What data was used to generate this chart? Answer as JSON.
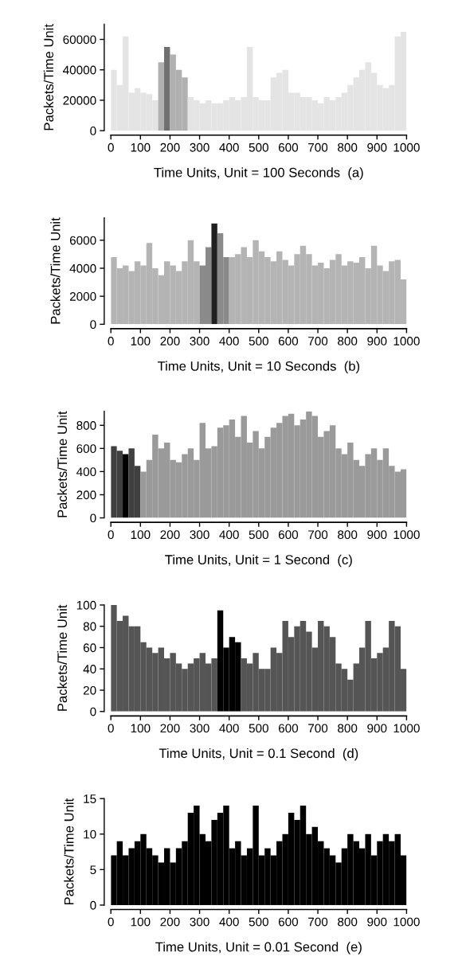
{
  "chart_data": [
    {
      "type": "bar",
      "xlabel": "Time Units, Unit = 100 Seconds  (a)",
      "ylabel": "Packets/Time Unit",
      "x": [
        10,
        30,
        50,
        70,
        90,
        110,
        130,
        150,
        170,
        190,
        210,
        230,
        250,
        270,
        290,
        310,
        330,
        350,
        370,
        390,
        410,
        430,
        450,
        470,
        490,
        510,
        530,
        550,
        570,
        590,
        610,
        630,
        650,
        670,
        690,
        710,
        730,
        750,
        770,
        790,
        810,
        830,
        850,
        870,
        890,
        910,
        930,
        950,
        970,
        990
      ],
      "values": [
        40000,
        30000,
        62000,
        25000,
        28000,
        25000,
        24000,
        20000,
        45000,
        55000,
        50000,
        40000,
        35000,
        22000,
        20000,
        18000,
        20000,
        18000,
        18000,
        20000,
        22000,
        20000,
        22000,
        55000,
        22000,
        20000,
        20000,
        35000,
        38000,
        40000,
        25000,
        25000,
        22000,
        22000,
        20000,
        18000,
        22000,
        20000,
        22000,
        25000,
        30000,
        35000,
        40000,
        45000,
        38000,
        30000,
        28000,
        30000,
        62000,
        65000
      ],
      "colors": [
        "#e4e4e4",
        "#e4e4e4",
        "#e4e4e4",
        "#e4e4e4",
        "#e4e4e4",
        "#e4e4e4",
        "#e4e4e4",
        "#e4e4e4",
        "#b0b0b0",
        "#707070",
        "#b0b0b0",
        "#b0b0b0",
        "#b0b0b0",
        "#e4e4e4",
        "#e4e4e4",
        "#e4e4e4",
        "#e4e4e4",
        "#e4e4e4",
        "#e4e4e4",
        "#e4e4e4",
        "#e4e4e4",
        "#e4e4e4",
        "#e4e4e4",
        "#e4e4e4",
        "#e4e4e4",
        "#e4e4e4",
        "#e4e4e4",
        "#e4e4e4",
        "#e4e4e4",
        "#e4e4e4",
        "#e4e4e4",
        "#e4e4e4",
        "#e4e4e4",
        "#e4e4e4",
        "#e4e4e4",
        "#e4e4e4",
        "#e4e4e4",
        "#e4e4e4",
        "#e4e4e4",
        "#e4e4e4",
        "#e4e4e4",
        "#e4e4e4",
        "#e4e4e4",
        "#e4e4e4",
        "#e4e4e4",
        "#e4e4e4",
        "#e4e4e4",
        "#e4e4e4",
        "#e4e4e4",
        "#e4e4e4"
      ],
      "xlim": [
        0,
        1000
      ],
      "xticks": [
        0,
        100,
        200,
        300,
        400,
        500,
        600,
        700,
        800,
        900,
        1000
      ],
      "ylim": [
        0,
        70000
      ],
      "yticks": [
        0,
        20000,
        40000,
        60000
      ]
    },
    {
      "type": "bar",
      "xlabel": "Time Units, Unit = 10 Seconds  (b)",
      "ylabel": "Packets/Time Unit",
      "x": [
        10,
        30,
        50,
        70,
        90,
        110,
        130,
        150,
        170,
        190,
        210,
        230,
        250,
        270,
        290,
        310,
        330,
        350,
        370,
        390,
        410,
        430,
        450,
        470,
        490,
        510,
        530,
        550,
        570,
        590,
        610,
        630,
        650,
        670,
        690,
        710,
        730,
        750,
        770,
        790,
        810,
        830,
        850,
        870,
        890,
        910,
        930,
        950,
        970,
        990
      ],
      "values": [
        4800,
        4000,
        4200,
        3800,
        4500,
        4200,
        5800,
        4000,
        3500,
        4500,
        4200,
        3800,
        4500,
        6000,
        4500,
        4200,
        5500,
        7200,
        6500,
        4800,
        4800,
        5000,
        5500,
        4800,
        6000,
        5200,
        4800,
        4500,
        5200,
        4600,
        4200,
        5000,
        5600,
        5000,
        4200,
        4400,
        4000,
        4600,
        5000,
        4200,
        4500,
        4400,
        4800,
        4000,
        5600,
        4200,
        3800,
        4500,
        4600,
        3200
      ],
      "colors": [
        "#b4b4b4",
        "#b4b4b4",
        "#b4b4b4",
        "#b4b4b4",
        "#b4b4b4",
        "#b4b4b4",
        "#b4b4b4",
        "#b4b4b4",
        "#b4b4b4",
        "#b4b4b4",
        "#b4b4b4",
        "#b4b4b4",
        "#b4b4b4",
        "#b4b4b4",
        "#b4b4b4",
        "#8a8a8a",
        "#8a8a8a",
        "#202020",
        "#8a8a8a",
        "#8a8a8a",
        "#b4b4b4",
        "#b4b4b4",
        "#b4b4b4",
        "#b4b4b4",
        "#b4b4b4",
        "#b4b4b4",
        "#b4b4b4",
        "#b4b4b4",
        "#b4b4b4",
        "#b4b4b4",
        "#b4b4b4",
        "#b4b4b4",
        "#b4b4b4",
        "#b4b4b4",
        "#b4b4b4",
        "#b4b4b4",
        "#b4b4b4",
        "#b4b4b4",
        "#b4b4b4",
        "#b4b4b4",
        "#b4b4b4",
        "#b4b4b4",
        "#b4b4b4",
        "#b4b4b4",
        "#b4b4b4",
        "#b4b4b4",
        "#b4b4b4",
        "#b4b4b4",
        "#b4b4b4",
        "#b4b4b4"
      ],
      "xlim": [
        0,
        1000
      ],
      "xticks": [
        0,
        100,
        200,
        300,
        400,
        500,
        600,
        700,
        800,
        900,
        1000
      ],
      "ylim": [
        0,
        7600
      ],
      "yticks": [
        0,
        2000,
        4000,
        6000
      ]
    },
    {
      "type": "bar",
      "xlabel": "Time Units, Unit = 1 Second  (c)",
      "ylabel": "Packets/Time Unit",
      "x": [
        10,
        30,
        50,
        70,
        90,
        110,
        130,
        150,
        170,
        190,
        210,
        230,
        250,
        270,
        290,
        310,
        330,
        350,
        370,
        390,
        410,
        430,
        450,
        470,
        490,
        510,
        530,
        550,
        570,
        590,
        610,
        630,
        650,
        670,
        690,
        710,
        730,
        750,
        770,
        790,
        810,
        830,
        850,
        870,
        890,
        910,
        930,
        950,
        970,
        990
      ],
      "values": [
        620,
        580,
        550,
        600,
        450,
        400,
        500,
        720,
        600,
        650,
        500,
        480,
        550,
        600,
        500,
        820,
        600,
        620,
        780,
        800,
        850,
        700,
        880,
        650,
        750,
        600,
        700,
        780,
        820,
        880,
        900,
        800,
        850,
        920,
        880,
        700,
        750,
        800,
        600,
        550,
        650,
        500,
        450,
        550,
        600,
        500,
        600,
        450,
        400,
        420
      ],
      "colors": [
        "#404040",
        "#404040",
        "#000000",
        "#404040",
        "#404040",
        "#9a9a9a",
        "#9a9a9a",
        "#9a9a9a",
        "#9a9a9a",
        "#9a9a9a",
        "#9a9a9a",
        "#9a9a9a",
        "#9a9a9a",
        "#9a9a9a",
        "#9a9a9a",
        "#9a9a9a",
        "#9a9a9a",
        "#9a9a9a",
        "#9a9a9a",
        "#9a9a9a",
        "#9a9a9a",
        "#9a9a9a",
        "#9a9a9a",
        "#9a9a9a",
        "#9a9a9a",
        "#9a9a9a",
        "#9a9a9a",
        "#9a9a9a",
        "#9a9a9a",
        "#9a9a9a",
        "#9a9a9a",
        "#9a9a9a",
        "#9a9a9a",
        "#9a9a9a",
        "#9a9a9a",
        "#9a9a9a",
        "#9a9a9a",
        "#9a9a9a",
        "#9a9a9a",
        "#9a9a9a",
        "#9a9a9a",
        "#9a9a9a",
        "#9a9a9a",
        "#9a9a9a",
        "#9a9a9a",
        "#9a9a9a",
        "#9a9a9a",
        "#9a9a9a",
        "#9a9a9a",
        "#9a9a9a"
      ],
      "xlim": [
        0,
        1000
      ],
      "xticks": [
        0,
        100,
        200,
        300,
        400,
        500,
        600,
        700,
        800,
        900,
        1000
      ],
      "ylim": [
        0,
        920
      ],
      "yticks": [
        0,
        200,
        400,
        600,
        800
      ]
    },
    {
      "type": "bar",
      "xlabel": "Time Units, Unit = 0.1 Second  (d)",
      "ylabel": "Packets/Time Unit",
      "x": [
        10,
        30,
        50,
        70,
        90,
        110,
        130,
        150,
        170,
        190,
        210,
        230,
        250,
        270,
        290,
        310,
        330,
        350,
        370,
        390,
        410,
        430,
        450,
        470,
        490,
        510,
        530,
        550,
        570,
        590,
        610,
        630,
        650,
        670,
        690,
        710,
        730,
        750,
        770,
        790,
        810,
        830,
        850,
        870,
        890,
        910,
        930,
        950,
        970,
        990
      ],
      "values": [
        100,
        85,
        90,
        80,
        80,
        65,
        60,
        55,
        60,
        50,
        55,
        45,
        40,
        45,
        50,
        55,
        45,
        50,
        95,
        60,
        70,
        65,
        50,
        45,
        55,
        40,
        40,
        60,
        55,
        85,
        70,
        80,
        85,
        75,
        60,
        85,
        80,
        70,
        45,
        40,
        30,
        45,
        60,
        85,
        50,
        55,
        60,
        85,
        80,
        40
      ],
      "colors": [
        "#555555",
        "#555555",
        "#555555",
        "#555555",
        "#555555",
        "#555555",
        "#555555",
        "#555555",
        "#555555",
        "#555555",
        "#555555",
        "#555555",
        "#555555",
        "#555555",
        "#555555",
        "#555555",
        "#555555",
        "#555555",
        "#000000",
        "#000000",
        "#000000",
        "#000000",
        "#555555",
        "#555555",
        "#555555",
        "#555555",
        "#555555",
        "#555555",
        "#555555",
        "#555555",
        "#555555",
        "#555555",
        "#555555",
        "#555555",
        "#555555",
        "#555555",
        "#555555",
        "#555555",
        "#555555",
        "#555555",
        "#555555",
        "#555555",
        "#555555",
        "#555555",
        "#555555",
        "#555555",
        "#555555",
        "#555555",
        "#555555",
        "#555555"
      ],
      "xlim": [
        0,
        1000
      ],
      "xticks": [
        0,
        100,
        200,
        300,
        400,
        500,
        600,
        700,
        800,
        900,
        1000
      ],
      "ylim": [
        0,
        100
      ],
      "yticks": [
        0,
        20,
        40,
        60,
        80,
        100
      ]
    },
    {
      "type": "bar",
      "xlabel": "Time Units, Unit = 0.01 Second  (e)",
      "ylabel": "Packets/Time Unit",
      "x": [
        10,
        30,
        50,
        70,
        90,
        110,
        130,
        150,
        170,
        190,
        210,
        230,
        250,
        270,
        290,
        310,
        330,
        350,
        370,
        390,
        410,
        430,
        450,
        470,
        490,
        510,
        530,
        550,
        570,
        590,
        610,
        630,
        650,
        670,
        690,
        710,
        730,
        750,
        770,
        790,
        810,
        830,
        850,
        870,
        890,
        910,
        930,
        950,
        970,
        990
      ],
      "values": [
        7,
        9,
        7,
        8,
        9,
        10,
        8,
        7,
        6,
        8,
        6,
        8,
        9,
        13,
        14,
        10,
        9,
        12,
        13,
        14,
        8,
        9,
        7,
        8,
        14,
        7,
        8,
        7,
        9,
        10,
        13,
        12,
        14,
        10,
        11,
        9,
        8,
        7,
        6,
        8,
        10,
        9,
        8,
        10,
        7,
        9,
        10,
        9,
        10,
        7
      ],
      "color": "#000000",
      "xlim": [
        0,
        1000
      ],
      "xticks": [
        0,
        100,
        200,
        300,
        400,
        500,
        600,
        700,
        800,
        900,
        1000
      ],
      "ylim": [
        0,
        15
      ],
      "yticks": [
        0,
        5,
        10,
        15
      ]
    }
  ]
}
